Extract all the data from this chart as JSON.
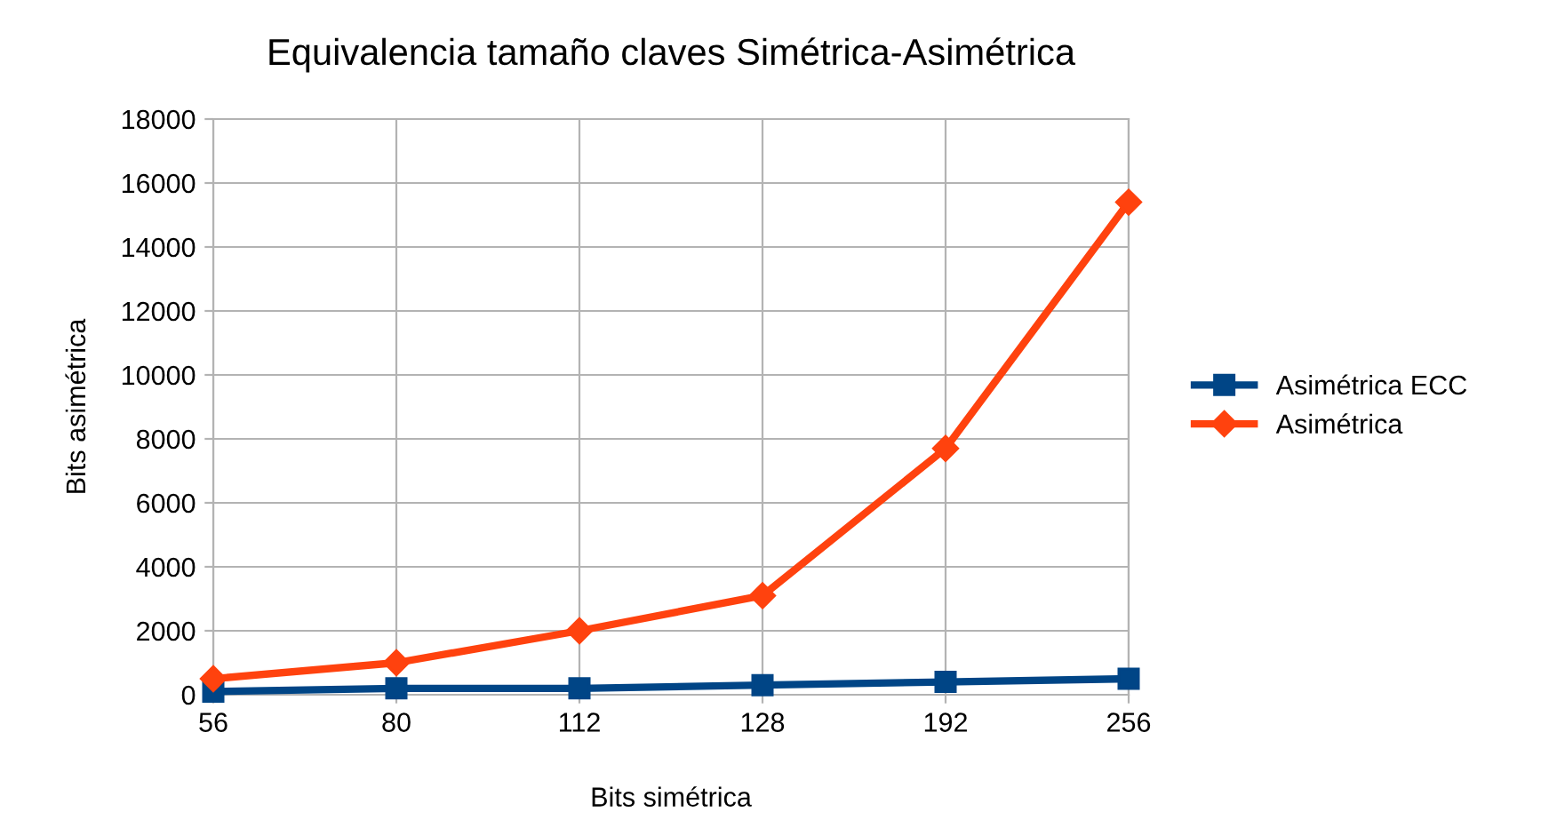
{
  "chart_data": {
    "type": "line",
    "title": "Equivalencia tamaño claves Simétrica-Asimétrica",
    "xlabel": "Bits simétrica",
    "ylabel": "Bits asimétrica",
    "categories": [
      "56",
      "80",
      "112",
      "128",
      "192",
      "256"
    ],
    "series": [
      {
        "name": "Asimétrica ECC",
        "color": "#004586",
        "marker": "square",
        "values": [
          100,
          200,
          200,
          300,
          400,
          500
        ]
      },
      {
        "name": "Asimétrica",
        "color": "#ff420e",
        "marker": "diamond",
        "values": [
          500,
          1000,
          2000,
          3100,
          7700,
          15400
        ]
      }
    ],
    "ylim": [
      0,
      18000
    ],
    "yticks": [
      0,
      2000,
      4000,
      6000,
      8000,
      10000,
      12000,
      14000,
      16000,
      18000
    ],
    "grid": true,
    "legend": "right",
    "line_style": "solid"
  }
}
